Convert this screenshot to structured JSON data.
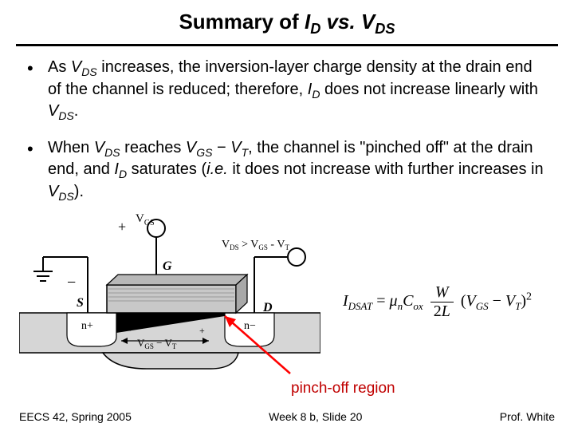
{
  "title": {
    "prefix": "Summary of ",
    "id_sym": "I",
    "id_sub": "D",
    "vs": " vs. ",
    "vds_sym": "V",
    "vds_sub": "DS"
  },
  "bullets": [
    {
      "parts": [
        {
          "t": "As "
        },
        {
          "t": "V",
          "ital": true
        },
        {
          "t": "DS",
          "sub": true,
          "ital": true
        },
        {
          "t": " increases, the inversion-layer charge density at the drain end of the channel is reduced; therefore, "
        },
        {
          "t": "I",
          "ital": true
        },
        {
          "t": "D",
          "sub": true,
          "ital": true
        },
        {
          "t": " does not increase linearly with "
        },
        {
          "t": "V",
          "ital": true
        },
        {
          "t": "DS",
          "sub": true,
          "ital": true
        },
        {
          "t": "."
        }
      ]
    },
    {
      "parts": [
        {
          "t": "When "
        },
        {
          "t": "V",
          "ital": true
        },
        {
          "t": "DS",
          "sub": true,
          "ital": true
        },
        {
          "t": " reaches "
        },
        {
          "t": "V",
          "ital": true
        },
        {
          "t": "GS",
          "sub": true,
          "ital": true
        },
        {
          "t": " − "
        },
        {
          "t": "V",
          "ital": true
        },
        {
          "t": "T",
          "sub": true,
          "ital": true
        },
        {
          "t": ", the channel is \"pinched off\" at the drain end, and "
        },
        {
          "t": "I",
          "ital": true
        },
        {
          "t": "D",
          "sub": true,
          "ital": true
        },
        {
          "t": " saturates ("
        },
        {
          "t": "i.e.",
          "ital": true
        },
        {
          "t": " it does not increase with further increases in "
        },
        {
          "t": "V",
          "ital": true
        },
        {
          "t": "DS",
          "sub": true,
          "ital": true
        },
        {
          "t": ")."
        }
      ]
    }
  ],
  "equation": {
    "lhs_sym": "I",
    "lhs_sub": "DSAT",
    "eq": " = ",
    "mu": "μ",
    "mu_sub": "n",
    "C": "C",
    "C_sub": "ox",
    "frac_num": "W",
    "frac_den_a": "2",
    "frac_den_b": "L",
    "paren_open": "(",
    "V1": "V",
    "V1_sub": "GS",
    "minus": " − ",
    "V2": "V",
    "V2_sub": "T",
    "paren_close": ")",
    "sup": "2"
  },
  "diagram": {
    "labels": {
      "plus": "+",
      "minus": "−",
      "S": "S",
      "G": "G",
      "D": "D",
      "Vgs": "V",
      "Vgs_sub": "GS",
      "cond": "V",
      "cond_sub1": "DS",
      "cond_gt": " > ",
      "cond_v2": "V",
      "cond_sub2": "GS",
      "cond_minus": " - ",
      "cond_v3": "V",
      "cond_sub3": "T",
      "n_left": "n+",
      "n_right": "n−",
      "ch_label_v": "V",
      "ch_label_sub": "GS",
      "ch_label_minus": " − ",
      "ch_label_v2": "V",
      "ch_label_sub2": "T",
      "ch_plus": "+",
      "ch_minus": "−"
    },
    "colors": {
      "outline": "#000000",
      "gate_fill": "#c8c8c8",
      "gate_hatch": "#9a9a9a",
      "body_fill": "#d6d6d6",
      "well_fill": "#ffffff",
      "arrow": "#ff0000"
    }
  },
  "pinch_label": "pinch-off region",
  "footer": {
    "left": "EECS 42, Spring 2005",
    "center": "Week 8 b, Slide 20",
    "right": "Prof. White"
  }
}
